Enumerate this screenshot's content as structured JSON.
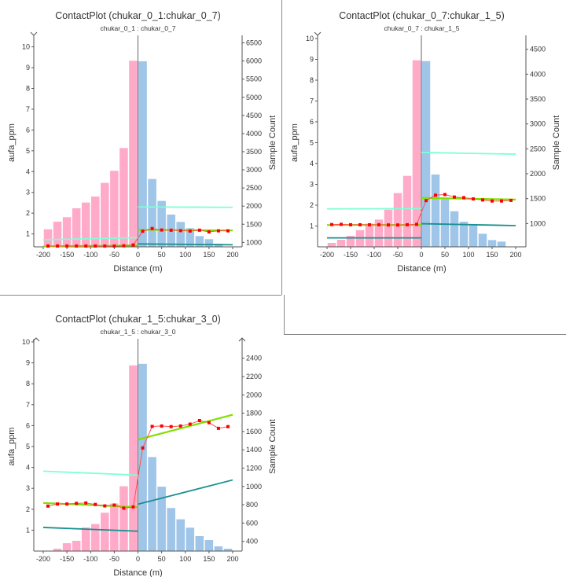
{
  "colors": {
    "left_bars": "#ffaac8",
    "right_bars": "#9fc5e8",
    "points": "#ff0000",
    "mean_line": "#80e000",
    "upper_line": "#80ffd4",
    "lower_line": "#1a9090",
    "axis": "#555555"
  },
  "chart_data": [
    {
      "type": "bar",
      "title": "ContactPlot (chukar_0_1:chukar_0_7)",
      "subtitle": "chukar_0_1 : chukar_0_7",
      "xlabel": "Distance (m)",
      "ylabel": "aufa_ppm",
      "y2label": "Sample Count",
      "xlim": [
        -200,
        200
      ],
      "xticks": [
        -200,
        -150,
        -100,
        -50,
        0,
        50,
        100,
        150,
        200
      ],
      "ylim": [
        0.38,
        10.4
      ],
      "yticks": [
        1,
        2,
        3,
        4,
        5,
        6,
        7,
        8,
        9,
        10
      ],
      "y2lim": [
        877,
        6620
      ],
      "y2ticks": [
        1000,
        1500,
        2000,
        2500,
        3000,
        3500,
        4000,
        4500,
        5000,
        5500,
        6000,
        6500
      ],
      "bin_centers": [
        -190,
        -170,
        -150,
        -130,
        -110,
        -90,
        -70,
        -50,
        -30,
        -10,
        10,
        30,
        50,
        70,
        90,
        110,
        130,
        150,
        170
      ],
      "sample_counts": [
        1361,
        1571,
        1694,
        1939,
        2098,
        2264,
        2640,
        2973,
        3601,
        6007,
        5993,
        2748,
        2142,
        1766,
        1564,
        1390,
        1173,
        1087,
        964
      ],
      "ppm_x": [
        -190,
        -170,
        -150,
        -130,
        -110,
        -90,
        -70,
        -50,
        -30,
        -10,
        10,
        30,
        50,
        70,
        90,
        110,
        130,
        150,
        170,
        190
      ],
      "ppm_values": [
        0.42,
        0.42,
        0.42,
        0.42,
        0.42,
        0.42,
        0.42,
        0.42,
        0.43,
        0.47,
        1.13,
        1.26,
        1.19,
        1.18,
        1.16,
        1.14,
        1.18,
        1.1,
        1.15,
        1.15
      ],
      "trend_lines": [
        {
          "series": "mean",
          "side": "left",
          "y": [
            0.4,
            0.45
          ]
        },
        {
          "series": "mean",
          "side": "right",
          "y": [
            1.2,
            1.17
          ]
        },
        {
          "series": "upper",
          "side": "left",
          "y": [
            0.72,
            0.82
          ]
        },
        {
          "series": "upper",
          "side": "right",
          "y": [
            2.3,
            2.28
          ]
        },
        {
          "series": "lower",
          "side": "right",
          "y": [
            0.52,
            0.48
          ]
        }
      ]
    },
    {
      "type": "bar",
      "title": "ContactPlot (chukar_0_7:chukar_1_5)",
      "subtitle": "chukar_0_7 : chukar_1_5",
      "xlabel": "Distance (m)",
      "ylabel": "aufa_ppm",
      "y2label": "Sample Count",
      "xlim": [
        -200,
        200
      ],
      "xticks": [
        -200,
        -150,
        -100,
        -50,
        0,
        50,
        100,
        150,
        200
      ],
      "ylim": [
        0,
        10
      ],
      "yticks": [
        1,
        2,
        3,
        4,
        5,
        6,
        7,
        8,
        9,
        10
      ],
      "y2lim": [
        532,
        4716
      ],
      "y2ticks": [
        1000,
        1500,
        2000,
        2500,
        3000,
        3500,
        4000,
        4500
      ],
      "bin_centers": [
        -190,
        -170,
        -150,
        -130,
        -110,
        -90,
        -70,
        -50,
        -30,
        -10,
        10,
        30,
        50,
        70,
        90,
        110,
        130,
        150,
        170
      ],
      "sample_counts": [
        611,
        674,
        753,
        868,
        1000,
        1079,
        1279,
        1611,
        1958,
        4279,
        4263,
        1984,
        1489,
        1247,
        1037,
        974,
        795,
        668,
        637
      ],
      "ppm_x": [
        -190,
        -170,
        -150,
        -130,
        -110,
        -90,
        -70,
        -50,
        -30,
        -10,
        10,
        30,
        50,
        70,
        90,
        110,
        130,
        150,
        170,
        190
      ],
      "ppm_values": [
        1.07,
        1.08,
        1.06,
        1.06,
        1.06,
        1.06,
        1.05,
        1.05,
        1.06,
        1.08,
        2.22,
        2.48,
        2.51,
        2.39,
        2.36,
        2.3,
        2.25,
        2.2,
        2.2,
        2.23
      ],
      "trend_lines": [
        {
          "series": "mean",
          "side": "left",
          "y": [
            1.05,
            1.05
          ]
        },
        {
          "series": "mean",
          "side": "right",
          "y": [
            2.35,
            2.27
          ]
        },
        {
          "series": "upper",
          "side": "left",
          "y": [
            1.82,
            1.84
          ]
        },
        {
          "series": "upper",
          "side": "right",
          "y": [
            4.53,
            4.45
          ]
        },
        {
          "series": "lower",
          "side": "left",
          "y": [
            0.43,
            0.43
          ]
        },
        {
          "series": "lower",
          "side": "right",
          "y": [
            1.11,
            1.02
          ]
        }
      ]
    },
    {
      "type": "bar",
      "title": "ContactPlot (chukar_1_5:chukar_3_0)",
      "subtitle": "chukar_1_5 : chukar_3_0",
      "xlabel": "Distance (m)",
      "ylabel": "aufa_ppm",
      "y2label": "Sample Count",
      "xlim": [
        -200,
        200
      ],
      "xticks": [
        -200,
        -150,
        -100,
        -50,
        0,
        50,
        100,
        150,
        200
      ],
      "ylim": [
        0,
        10
      ],
      "yticks": [
        1,
        2,
        3,
        4,
        5,
        6,
        7,
        8,
        9,
        10
      ],
      "y2lim": [
        294,
        2578
      ],
      "y2ticks": [
        400,
        600,
        800,
        1000,
        1200,
        1400,
        1600,
        1800,
        2000,
        2200,
        2400
      ],
      "bin_centers": [
        -170,
        -150,
        -130,
        -110,
        -90,
        -70,
        -50,
        -30,
        -10,
        10,
        30,
        50,
        70,
        90,
        110,
        130,
        150,
        170,
        190
      ],
      "sample_counts": [
        320,
        380,
        406,
        552,
        589,
        713,
        813,
        1002,
        2322,
        2339,
        1321,
        997,
        764,
        641,
        549,
        457,
        414,
        345,
        320
      ],
      "ppm_x": [
        -190,
        -170,
        -150,
        -130,
        -110,
        -90,
        -70,
        -50,
        -30,
        -10,
        10,
        30,
        50,
        70,
        90,
        110,
        130,
        150,
        170,
        190
      ],
      "ppm_values": [
        2.15,
        2.25,
        2.25,
        2.28,
        2.3,
        2.23,
        2.16,
        2.2,
        2.05,
        2.11,
        4.93,
        5.96,
        5.98,
        5.95,
        5.98,
        6.07,
        6.24,
        6.14,
        5.87,
        5.95
      ],
      "trend_lines": [
        {
          "series": "mean",
          "side": "left",
          "y": [
            2.3,
            2.1
          ]
        },
        {
          "series": "mean",
          "side": "right",
          "y": [
            5.33,
            6.52
          ]
        },
        {
          "series": "upper",
          "side": "left",
          "y": [
            3.82,
            3.63
          ]
        },
        {
          "series": "lower",
          "side": "left",
          "y": [
            1.13,
            0.95
          ]
        },
        {
          "series": "lower",
          "side": "right",
          "y": [
            2.24,
            3.4
          ]
        }
      ]
    }
  ]
}
